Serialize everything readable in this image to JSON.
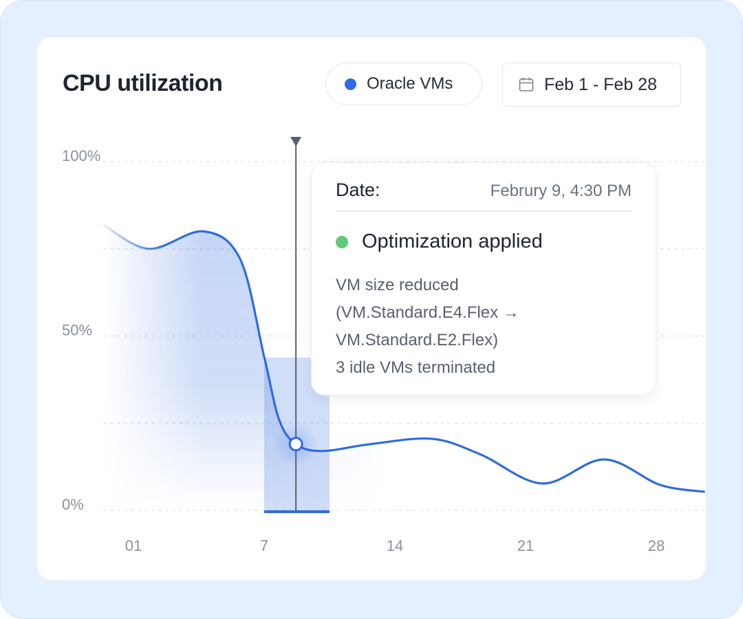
{
  "title": "CPU utilization",
  "legend": {
    "label": "Oracle VMs",
    "color": "#2f6be0"
  },
  "date_range": {
    "icon": "calendar-icon",
    "label": "Feb 1 - Feb 28"
  },
  "tooltip": {
    "date_label": "Date:",
    "date_value": "Februry 9, 4:30 PM",
    "status": "Optimization applied",
    "status_color": "#5ec97a",
    "lines": [
      "VM size reduced",
      "(VM.Standard.E4.Flex →",
      "VM.Standard.E2.Flex)",
      "3 idle VMs terminated"
    ]
  },
  "chart_data": {
    "type": "area",
    "title": "CPU utilization",
    "xlabel": "",
    "ylabel": "",
    "ylim": [
      0,
      100
    ],
    "yticks": [
      0,
      50,
      100
    ],
    "ytick_labels": [
      "0%",
      "50%",
      "100%"
    ],
    "ygrid": [
      0,
      25,
      50,
      75,
      100
    ],
    "xticks": [
      1,
      7,
      14,
      21,
      28
    ],
    "xtick_labels": [
      "01",
      "7",
      "14",
      "21",
      "28"
    ],
    "grid": true,
    "line_color": "#2f6be0",
    "series": [
      {
        "x": [
          -0.4,
          1.7,
          4.2,
          5.9,
          7,
          7.8,
          8.7,
          10.1,
          12.7,
          16.0,
          18.6,
          21.9,
          25.2,
          28.2,
          30.6
        ],
        "y": [
          82,
          75,
          80,
          72,
          44,
          26,
          19,
          17,
          19,
          20.5,
          16,
          7.7,
          14.6,
          7.3,
          5.3
        ]
      }
    ],
    "highlight": {
      "x_start": 7,
      "x_end": 10.5,
      "hover_x": 8.7,
      "hover_y": 19
    }
  }
}
